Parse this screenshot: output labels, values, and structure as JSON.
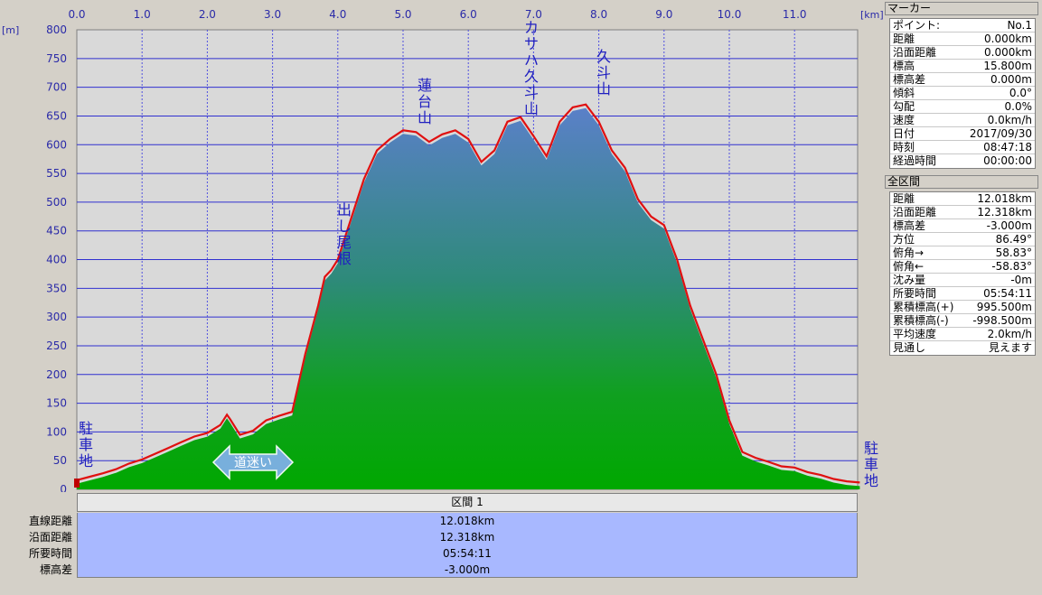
{
  "chart_data": {
    "type": "area",
    "xlabel_unit": "[km]",
    "ylabel_unit": "[m]",
    "xlim": [
      0,
      12.0
    ],
    "ylim": [
      0,
      800
    ],
    "xticks": [
      "0.0",
      "1.0",
      "2.0",
      "3.0",
      "4.0",
      "5.0",
      "6.0",
      "7.0",
      "8.0",
      "9.0",
      "10.0",
      "11.0"
    ],
    "yticks": [
      "0",
      "50",
      "100",
      "150",
      "200",
      "250",
      "300",
      "350",
      "400",
      "450",
      "500",
      "550",
      "600",
      "650",
      "700",
      "750",
      "800"
    ],
    "grid": true,
    "series": [
      {
        "color": "#e01010",
        "x": [
          0,
          0.2,
          0.4,
          0.6,
          0.8,
          1.0,
          1.2,
          1.4,
          1.6,
          1.8,
          2.0,
          2.2,
          2.3,
          2.35,
          2.5,
          2.7,
          2.9,
          3.1,
          3.3,
          3.5,
          3.7,
          3.8,
          3.9,
          4.0,
          4.2,
          4.4,
          4.6,
          4.8,
          5.0,
          5.2,
          5.4,
          5.6,
          5.8,
          6.0,
          6.2,
          6.4,
          6.6,
          6.8,
          7.0,
          7.2,
          7.4,
          7.6,
          7.8,
          8.0,
          8.2,
          8.4,
          8.6,
          8.8,
          9.0,
          9.2,
          9.4,
          9.6,
          9.8,
          10.0,
          10.2,
          10.4,
          10.6,
          10.8,
          11.0,
          11.2,
          11.4,
          11.6,
          11.8,
          12.0
        ],
        "y": [
          16,
          22,
          28,
          35,
          45,
          52,
          62,
          72,
          82,
          92,
          98,
          112,
          130,
          122,
          95,
          102,
          120,
          128,
          135,
          235,
          320,
          370,
          382,
          400,
          470,
          540,
          590,
          610,
          625,
          622,
          605,
          618,
          625,
          610,
          570,
          590,
          640,
          648,
          615,
          580,
          640,
          665,
          670,
          640,
          590,
          560,
          505,
          475,
          460,
          400,
          320,
          260,
          200,
          120,
          65,
          55,
          48,
          40,
          38,
          30,
          25,
          18,
          14,
          12
        ]
      }
    ],
    "annotations": [
      "駐車地",
      "出し尾根",
      "蓮台山",
      "カサハ久斗山",
      "久斗山",
      "駐車地",
      "道迷い"
    ]
  },
  "section": {
    "header": "区間 1",
    "rows": [
      {
        "label": "直線距離",
        "value": "12.018km"
      },
      {
        "label": "沿面距離",
        "value": "12.318km"
      },
      {
        "label": "所要時間",
        "value": "05:54:11"
      },
      {
        "label": "標高差",
        "value": "-3.000m"
      }
    ]
  },
  "marker_panel": {
    "title": "マーカー",
    "rows": [
      {
        "label": "ポイント:",
        "value": "No.1"
      },
      {
        "label": "距離",
        "value": "0.000km"
      },
      {
        "label": "沿面距離",
        "value": "0.000km"
      },
      {
        "label": "標高",
        "value": "15.800m"
      },
      {
        "label": "標高差",
        "value": "0.000m"
      },
      {
        "label": "傾斜",
        "value": "0.0°"
      },
      {
        "label": "勾配",
        "value": "0.0%"
      },
      {
        "label": "速度",
        "value": "0.0km/h"
      },
      {
        "label": "日付",
        "value": "2017/09/30"
      },
      {
        "label": "時刻",
        "value": "08:47:18"
      },
      {
        "label": "経過時間",
        "value": "00:00:00"
      }
    ]
  },
  "total_panel": {
    "title": "全区間",
    "rows": [
      {
        "label": "距離",
        "value": "12.018km"
      },
      {
        "label": "沿面距離",
        "value": "12.318km"
      },
      {
        "label": "標高差",
        "value": "-3.000m"
      },
      {
        "label": "方位",
        "value": "86.49°"
      },
      {
        "label": "俯角→",
        "value": "58.83°"
      },
      {
        "label": "俯角←",
        "value": "-58.83°"
      },
      {
        "label": "沈み量",
        "value": "-0m"
      },
      {
        "label": "所要時間",
        "value": "05:54:11"
      },
      {
        "label": "累積標高(+)",
        "value": "995.500m"
      },
      {
        "label": "累積標高(-)",
        "value": "-998.500m"
      },
      {
        "label": "平均速度",
        "value": "2.0km/h"
      },
      {
        "label": "見通し",
        "value": "見えます"
      }
    ]
  }
}
